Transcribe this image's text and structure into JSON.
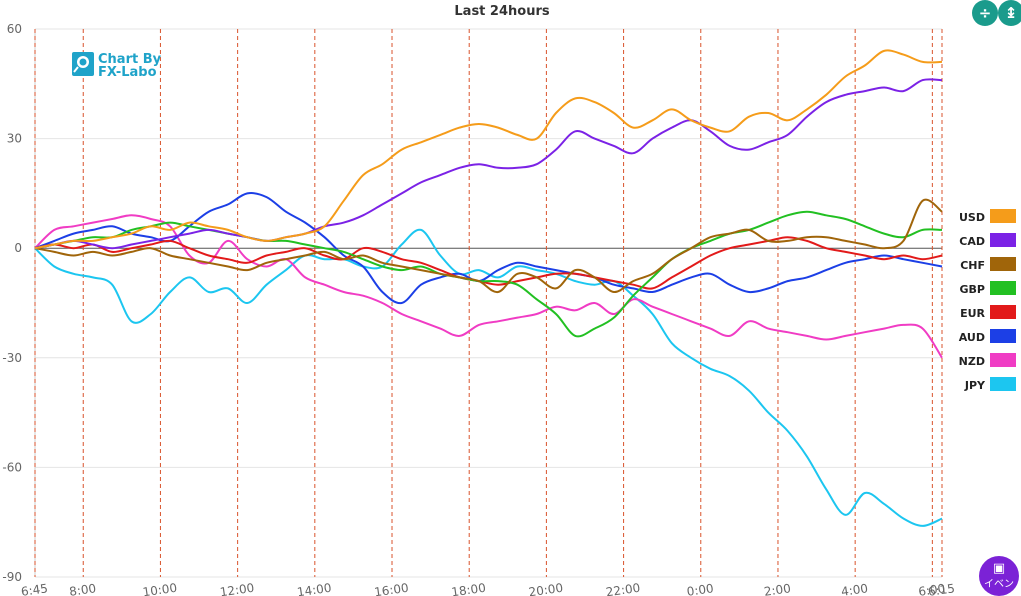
{
  "chart_data": {
    "type": "line",
    "title": "Last 24hours",
    "xlabel": "",
    "ylabel": "",
    "ylim": [
      -90,
      60
    ],
    "yticks": [
      60,
      30,
      0,
      -30,
      -60,
      -90
    ],
    "xlim": [
      0,
      23.5
    ],
    "x_ticks": [
      {
        "h": 0,
        "label": "6:45"
      },
      {
        "h": 1.25,
        "label": "8:00"
      },
      {
        "h": 3.25,
        "label": "10:00"
      },
      {
        "h": 5.25,
        "label": "12:00"
      },
      {
        "h": 7.25,
        "label": "14:00"
      },
      {
        "h": 9.25,
        "label": "16:00"
      },
      {
        "h": 11.25,
        "label": "18:00"
      },
      {
        "h": 13.25,
        "label": "20:00"
      },
      {
        "h": 15.25,
        "label": "22:00"
      },
      {
        "h": 17.25,
        "label": "0:00"
      },
      {
        "h": 19.25,
        "label": "2:00"
      },
      {
        "h": 21.25,
        "label": "4:00"
      },
      {
        "h": 23.25,
        "label": "6:00"
      },
      {
        "h": 23.5,
        "label": "6:15"
      }
    ],
    "series": [
      {
        "name": "USD",
        "color": "#f59c1a",
        "x": [
          0,
          0.5,
          1,
          1.5,
          2,
          2.5,
          3,
          3.5,
          4,
          4.5,
          5,
          5.5,
          6,
          6.5,
          7,
          7.5,
          8,
          8.5,
          9,
          9.5,
          10,
          10.5,
          11,
          11.5,
          12,
          12.5,
          13,
          13.5,
          14,
          14.5,
          15,
          15.5,
          16,
          16.5,
          17,
          17.5,
          18,
          18.5,
          19,
          19.5,
          20,
          20.5,
          21,
          21.5,
          22,
          22.5,
          23,
          23.5
        ],
        "values": [
          0,
          1,
          2,
          2,
          3,
          4,
          6,
          5,
          7,
          6,
          5,
          3,
          2,
          3,
          4,
          6,
          13,
          20,
          23,
          27,
          29,
          31,
          33,
          34,
          33,
          31,
          30,
          37,
          41,
          40,
          37,
          33,
          35,
          38,
          35,
          33,
          32,
          36,
          37,
          35,
          38,
          42,
          47,
          50,
          54,
          53,
          51,
          51
        ]
      },
      {
        "name": "CAD",
        "color": "#7b22e6",
        "x": [
          0,
          0.5,
          1,
          1.5,
          2,
          2.5,
          3,
          3.5,
          4,
          4.5,
          5,
          5.5,
          6,
          6.5,
          7,
          7.5,
          8,
          8.5,
          9,
          9.5,
          10,
          10.5,
          11,
          11.5,
          12,
          12.5,
          13,
          13.5,
          14,
          14.5,
          15,
          15.5,
          16,
          16.5,
          17,
          17.5,
          18,
          18.5,
          19,
          19.5,
          20,
          20.5,
          21,
          21.5,
          22,
          22.5,
          23,
          23.5
        ],
        "values": [
          0,
          1,
          2,
          1,
          0,
          1,
          2,
          3,
          4,
          5,
          4,
          3,
          2,
          3,
          4,
          6,
          7,
          9,
          12,
          15,
          18,
          20,
          22,
          23,
          22,
          22,
          23,
          27,
          32,
          30,
          28,
          26,
          30,
          33,
          35,
          32,
          28,
          27,
          29,
          31,
          36,
          40,
          42,
          43,
          44,
          43,
          46,
          46
        ]
      },
      {
        "name": "CHF",
        "color": "#a0650a",
        "x": [
          0,
          0.5,
          1,
          1.5,
          2,
          2.5,
          3,
          3.5,
          4,
          4.5,
          5,
          5.5,
          6,
          6.5,
          7,
          7.5,
          8,
          8.5,
          9,
          9.5,
          10,
          10.5,
          11,
          11.5,
          12,
          12.5,
          13,
          13.5,
          14,
          14.5,
          15,
          15.5,
          16,
          16.5,
          17,
          17.5,
          18,
          18.5,
          19,
          19.5,
          20,
          20.5,
          21,
          21.5,
          22,
          22.5,
          23,
          23.5
        ],
        "values": [
          0,
          -1,
          -2,
          -1,
          -2,
          -1,
          0,
          -2,
          -3,
          -4,
          -5,
          -6,
          -4,
          -3,
          -2,
          -1,
          -3,
          -2,
          -4,
          -5,
          -6,
          -7,
          -8,
          -9,
          -12,
          -7,
          -8,
          -11,
          -6,
          -8,
          -12,
          -9,
          -7,
          -3,
          0,
          3,
          4,
          5,
          2,
          2,
          3,
          3,
          2,
          1,
          0,
          2,
          13,
          10
        ]
      },
      {
        "name": "GBP",
        "color": "#22c022",
        "x": [
          0,
          0.5,
          1,
          1.5,
          2,
          2.5,
          3,
          3.5,
          4,
          4.5,
          5,
          5.5,
          6,
          6.5,
          7,
          7.5,
          8,
          8.5,
          9,
          9.5,
          10,
          10.5,
          11,
          11.5,
          12,
          12.5,
          13,
          13.5,
          14,
          14.5,
          15,
          15.5,
          16,
          16.5,
          17,
          17.5,
          18,
          18.5,
          19,
          19.5,
          20,
          20.5,
          21,
          21.5,
          22,
          22.5,
          23,
          23.5
        ],
        "values": [
          0,
          1,
          2,
          3,
          3,
          5,
          6,
          7,
          6,
          5,
          4,
          3,
          2,
          2,
          1,
          0,
          -1,
          -3,
          -5,
          -6,
          -5,
          -7,
          -8,
          -9,
          -9,
          -10,
          -14,
          -18,
          -24,
          -22,
          -19,
          -13,
          -8,
          -3,
          0,
          2,
          4,
          5,
          7,
          9,
          10,
          9,
          8,
          6,
          4,
          3,
          5,
          5
        ]
      },
      {
        "name": "EUR",
        "color": "#e21a1a",
        "x": [
          0,
          0.5,
          1,
          1.5,
          2,
          2.5,
          3,
          3.5,
          4,
          4.5,
          5,
          5.5,
          6,
          6.5,
          7,
          7.5,
          8,
          8.5,
          9,
          9.5,
          10,
          10.5,
          11,
          11.5,
          12,
          12.5,
          13,
          13.5,
          14,
          14.5,
          15,
          15.5,
          16,
          16.5,
          17,
          17.5,
          18,
          18.5,
          19,
          19.5,
          20,
          20.5,
          21,
          21.5,
          22,
          22.5,
          23,
          23.5
        ],
        "values": [
          0,
          1,
          0,
          1,
          -1,
          0,
          1,
          2,
          0,
          -2,
          -3,
          -4,
          -2,
          -1,
          0,
          -2,
          -3,
          0,
          -1,
          -3,
          -4,
          -6,
          -8,
          -9,
          -10,
          -9,
          -8,
          -7,
          -7,
          -8,
          -9,
          -10,
          -11,
          -8,
          -5,
          -2,
          0,
          1,
          2,
          3,
          2,
          0,
          -1,
          -2,
          -3,
          -2,
          -3,
          -2
        ]
      },
      {
        "name": "AUD",
        "color": "#1c3fe6",
        "x": [
          0,
          0.5,
          1,
          1.5,
          2,
          2.5,
          3,
          3.5,
          4,
          4.5,
          5,
          5.5,
          6,
          6.5,
          7,
          7.5,
          8,
          8.5,
          9,
          9.5,
          10,
          10.5,
          11,
          11.5,
          12,
          12.5,
          13,
          13.5,
          14,
          14.5,
          15,
          15.5,
          16,
          16.5,
          17,
          17.5,
          18,
          18.5,
          19,
          19.5,
          20,
          20.5,
          21,
          21.5,
          22,
          22.5,
          23,
          23.5
        ],
        "values": [
          0,
          2,
          4,
          5,
          6,
          4,
          3,
          2,
          6,
          10,
          12,
          15,
          14,
          10,
          7,
          3,
          -2,
          -5,
          -12,
          -15,
          -10,
          -8,
          -7,
          -9,
          -6,
          -4,
          -5,
          -6,
          -7,
          -8,
          -10,
          -11,
          -12,
          -10,
          -8,
          -7,
          -10,
          -12,
          -11,
          -9,
          -8,
          -6,
          -4,
          -3,
          -2,
          -3,
          -4,
          -5
        ]
      },
      {
        "name": "NZD",
        "color": "#f03cc4",
        "x": [
          0,
          0.5,
          1,
          1.5,
          2,
          2.5,
          3,
          3.5,
          4,
          4.5,
          5,
          5.5,
          6,
          6.5,
          7,
          7.5,
          8,
          8.5,
          9,
          9.5,
          10,
          10.5,
          11,
          11.5,
          12,
          12.5,
          13,
          13.5,
          14,
          14.5,
          15,
          15.5,
          16,
          16.5,
          17,
          17.5,
          18,
          18.5,
          19,
          19.5,
          20,
          20.5,
          21,
          21.5,
          22,
          22.5,
          23,
          23.5
        ],
        "values": [
          0,
          5,
          6,
          7,
          8,
          9,
          8,
          6,
          -2,
          -4,
          2,
          -3,
          -5,
          -3,
          -8,
          -10,
          -12,
          -13,
          -15,
          -18,
          -20,
          -22,
          -24,
          -21,
          -20,
          -19,
          -18,
          -16,
          -17,
          -15,
          -18,
          -14,
          -16,
          -18,
          -20,
          -22,
          -24,
          -20,
          -22,
          -23,
          -24,
          -25,
          -24,
          -23,
          -22,
          -21,
          -22,
          -30
        ]
      },
      {
        "name": "JPY",
        "color": "#1cc6f0",
        "x": [
          0,
          0.5,
          1,
          1.5,
          2,
          2.5,
          3,
          3.5,
          4,
          4.5,
          5,
          5.5,
          6,
          6.5,
          7,
          7.5,
          8,
          8.5,
          9,
          9.5,
          10,
          10.5,
          11,
          11.5,
          12,
          12.5,
          13,
          13.5,
          14,
          14.5,
          15,
          15.5,
          16,
          16.5,
          17,
          17.5,
          18,
          18.5,
          19,
          19.5,
          20,
          20.5,
          21,
          21.5,
          22,
          22.5,
          23,
          23.5
        ],
        "values": [
          0,
          -5,
          -7,
          -8,
          -10,
          -20,
          -18,
          -12,
          -8,
          -12,
          -11,
          -15,
          -10,
          -6,
          -2,
          -3,
          -3,
          -5,
          -5,
          1,
          5,
          -2,
          -7,
          -6,
          -8,
          -5,
          -6,
          -7,
          -9,
          -10,
          -9,
          -13,
          -18,
          -26,
          -30,
          -33,
          -35,
          -39,
          -45,
          -50,
          -57,
          -66,
          -73,
          -67,
          -70,
          -74,
          -76,
          -74
        ]
      }
    ]
  },
  "logo": {
    "line1": "Chart By",
    "line2": "FX-Labo"
  },
  "buttons": {
    "event_label": "イベン"
  }
}
